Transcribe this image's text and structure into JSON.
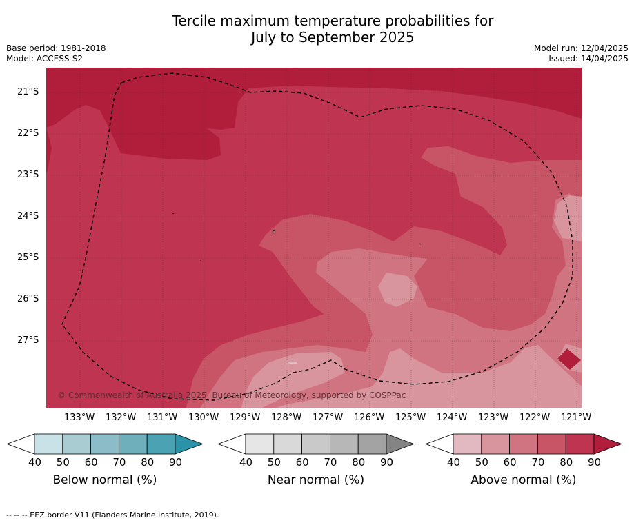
{
  "title_line1": "Tercile maximum temperature probabilities for",
  "title_line2": "July to September 2025",
  "meta_left": {
    "base_period": "Base period: 1981-2018",
    "model": "Model: ACCESS-S2"
  },
  "meta_right": {
    "model_run": "Model run: 12/04/2025",
    "issued": "Issued: 14/04/2025"
  },
  "copyright": "© Commonwealth of Australia 2025, Bureau of Meteorology, supported by COSPPac",
  "map": {
    "lat_labels": [
      "21°S",
      "22°S",
      "23°S",
      "24°S",
      "25°S",
      "26°S",
      "27°S"
    ],
    "lon_labels": [
      "133°W",
      "132°W",
      "131°W",
      "130°W",
      "129°W",
      "128°W",
      "127°W",
      "126°W",
      "125°W",
      "124°W",
      "123°W",
      "122°W",
      "121°W"
    ],
    "colors": {
      "p90": "#b01e3c",
      "p80": "#bf3450",
      "p70": "#c75565",
      "p60": "#cf7480",
      "p50": "#d9959d",
      "p40": "#e2b9c0"
    },
    "eez_border": "dashed"
  },
  "colorbars": [
    {
      "label": "Below normal (%)",
      "ticks": [
        "40",
        "50",
        "60",
        "70",
        "80",
        "90"
      ],
      "colors": [
        "#c9e2e8",
        "#a9ccd3",
        "#8cbcc7",
        "#6fafbc",
        "#4aa2b2",
        "#2a93a8"
      ]
    },
    {
      "label": "Near normal (%)",
      "ticks": [
        "40",
        "50",
        "60",
        "70",
        "80",
        "90"
      ],
      "colors": [
        "#e6e6e6",
        "#d9d9d9",
        "#c9c9c9",
        "#b7b7b7",
        "#a3a3a3",
        "#848484"
      ]
    },
    {
      "label": "Above normal (%)",
      "ticks": [
        "40",
        "50",
        "60",
        "70",
        "80",
        "90"
      ],
      "colors": [
        "#e2b9c0",
        "#d9959d",
        "#cf7480",
        "#c75565",
        "#bf3450",
        "#b01e3c"
      ]
    }
  ],
  "footnote": "--  --  -- EEZ border V11 (Flanders Marine Institute, 2019)."
}
